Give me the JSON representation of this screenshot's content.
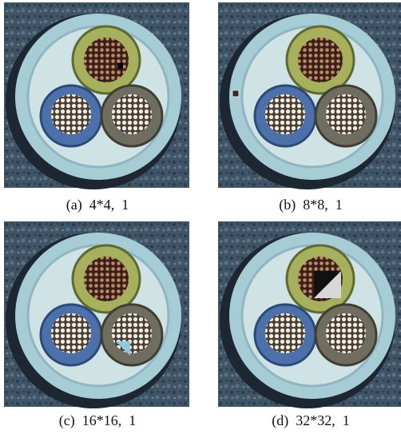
{
  "panels": [
    {
      "caption": "(a)  4*4,  1"
    },
    {
      "caption": "(b)  8*8,  1"
    },
    {
      "caption": "(c)  16*16,  1"
    },
    {
      "caption": "(d)  32*32,  1"
    }
  ]
}
